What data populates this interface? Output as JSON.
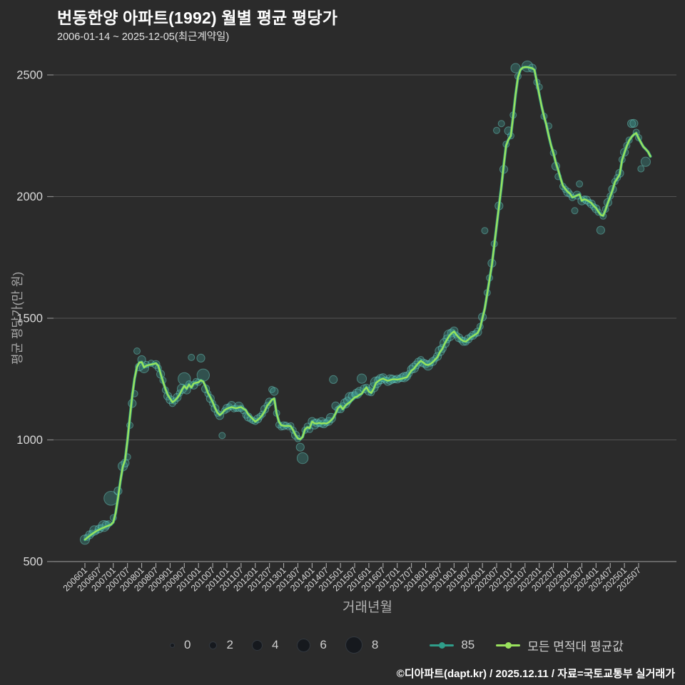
{
  "header": {
    "title": "번동한양 아파트(1992) 월별 평균 평당가",
    "subtitle": "2006-01-14 ~ 2025-12-05(최근계약일)"
  },
  "colors": {
    "background": "#2b2b2b",
    "grid": "#545454",
    "axis_line": "#8a8a8a",
    "tick_text": "#d9d9d9",
    "axis_title_text": "#a9a9a9",
    "bubble_fill": "rgba(62,168,160,0.30)",
    "bubble_stroke": "rgba(112,212,202,0.45)",
    "legend_bubble_fill": "#16191e",
    "series_85": "#2f9e8a",
    "series_avg": "#9ae25d"
  },
  "chart_data": {
    "type": "line",
    "title": "번동한양 아파트(1992) 월별 평균 평당가",
    "xlabel": "거래년월",
    "ylabel": "평균 평당가(만 원)",
    "x_start": "2006-01",
    "x_end": "2025-12",
    "ylim": [
      500,
      2500
    ],
    "yticks": [
      500,
      1000,
      1500,
      2000,
      2500
    ],
    "grid": true,
    "legend_position": "bottom",
    "x_tick_labels": [
      "200601",
      "200607",
      "200701",
      "200707",
      "200801",
      "200807",
      "200901",
      "200907",
      "201001",
      "201007",
      "201101",
      "201107",
      "201201",
      "201207",
      "201301",
      "201307",
      "201401",
      "201407",
      "201501",
      "201507",
      "201601",
      "201607",
      "201701",
      "201707",
      "201801",
      "201807",
      "201901",
      "201907",
      "202001",
      "202007",
      "202101",
      "202107",
      "202201",
      "202207",
      "202301",
      "202307",
      "202401",
      "202407",
      "202501",
      "202507"
    ],
    "line_values": [
      590,
      598,
      606,
      613,
      620,
      626,
      631,
      636,
      640,
      644,
      648,
      652,
      662,
      700,
      762,
      830,
      890,
      918,
      1000,
      1092,
      1180,
      1252,
      1300,
      1318,
      1320,
      1298,
      1305,
      1308,
      1310,
      1312,
      1315,
      1305,
      1272,
      1240,
      1210,
      1185,
      1170,
      1155,
      1162,
      1172,
      1186,
      1206,
      1222,
      1210,
      1228,
      1215,
      1232,
      1235,
      1237,
      1245,
      1240,
      1219,
      1193,
      1175,
      1155,
      1131,
      1112,
      1102,
      1110,
      1122,
      1128,
      1132,
      1135,
      1132,
      1130,
      1133,
      1135,
      1128,
      1122,
      1105,
      1095,
      1085,
      1075,
      1082,
      1091,
      1102,
      1118,
      1140,
      1152,
      1165,
      1170,
      1110,
      1075,
      1060,
      1058,
      1057,
      1058,
      1056,
      1040,
      1020,
      1006,
      1003,
      1012,
      1043,
      1052,
      1048,
      1076,
      1068,
      1067,
      1070,
      1067,
      1069,
      1067,
      1072,
      1080,
      1091,
      1110,
      1131,
      1140,
      1126,
      1140,
      1149,
      1155,
      1165,
      1175,
      1178,
      1185,
      1190,
      1205,
      1216,
      1199,
      1193,
      1210,
      1234,
      1242,
      1248,
      1252,
      1247,
      1243,
      1246,
      1249,
      1249,
      1248,
      1250,
      1252,
      1255,
      1257,
      1270,
      1285,
      1292,
      1305,
      1316,
      1325,
      1318,
      1310,
      1308,
      1312,
      1320,
      1330,
      1340,
      1360,
      1374,
      1395,
      1412,
      1428,
      1438,
      1446,
      1432,
      1421,
      1412,
      1406,
      1404,
      1412,
      1421,
      1427,
      1433,
      1440,
      1460,
      1500,
      1540,
      1600,
      1660,
      1720,
      1800,
      1880,
      1960,
      2041,
      2130,
      2210,
      2235,
      2250,
      2330,
      2420,
      2490,
      2520,
      2530,
      2532,
      2532,
      2530,
      2528,
      2520,
      2470,
      2420,
      2372,
      2330,
      2295,
      2250,
      2210,
      2178,
      2140,
      2110,
      2075,
      2045,
      2032,
      2020,
      2012,
      1997,
      2000,
      2005,
      2009,
      1983,
      1989,
      1986,
      1980,
      1974,
      1962,
      1953,
      1938,
      1925,
      1921,
      1945,
      1974,
      2000,
      2027,
      2060,
      2075,
      2091,
      2150,
      2180,
      2208,
      2230,
      2245,
      2255,
      2261,
      2240,
      2222,
      2205,
      2195,
      2184,
      2165
    ],
    "series": [
      {
        "name": "85",
        "color": "#2f9e8a"
      },
      {
        "name": "모든 면적대 평균값",
        "color": "#9ae25d"
      }
    ],
    "size_legend": [
      0,
      2,
      4,
      6,
      8
    ],
    "bubbles": [
      [
        0,
        590,
        4
      ],
      [
        1,
        600,
        2
      ],
      [
        2,
        610,
        3
      ],
      [
        3,
        616,
        2
      ],
      [
        4,
        628,
        4
      ],
      [
        5,
        624,
        1
      ],
      [
        6,
        634,
        3
      ],
      [
        7,
        640,
        2
      ],
      [
        8,
        646,
        5
      ],
      [
        9,
        650,
        3
      ],
      [
        10,
        655,
        2
      ],
      [
        11,
        760,
        7
      ],
      [
        12,
        680,
        2
      ],
      [
        14,
        790,
        3
      ],
      [
        16,
        892,
        4
      ],
      [
        17,
        905,
        3
      ],
      [
        18,
        930,
        2
      ],
      [
        19,
        1060,
        2
      ],
      [
        20,
        1150,
        3
      ],
      [
        21,
        1190,
        2
      ],
      [
        22,
        1365,
        2
      ],
      [
        23,
        1300,
        3
      ],
      [
        24,
        1330,
        3
      ],
      [
        25,
        1295,
        4
      ],
      [
        26,
        1310,
        2
      ],
      [
        28,
        1315,
        2
      ],
      [
        30,
        1310,
        3
      ],
      [
        31,
        1295,
        2
      ],
      [
        32,
        1270,
        3
      ],
      [
        33,
        1245,
        2
      ],
      [
        34,
        1205,
        2
      ],
      [
        35,
        1180,
        3
      ],
      [
        36,
        1165,
        3
      ],
      [
        37,
        1150,
        2
      ],
      [
        38,
        1160,
        2
      ],
      [
        39,
        1175,
        3
      ],
      [
        40,
        1192,
        2
      ],
      [
        41,
        1210,
        4
      ],
      [
        42,
        1251,
        6
      ],
      [
        43,
        1205,
        3
      ],
      [
        44,
        1230,
        2
      ],
      [
        45,
        1339,
        2
      ],
      [
        46,
        1225,
        3
      ],
      [
        47,
        1240,
        2
      ],
      [
        48,
        1237,
        2
      ],
      [
        49,
        1336,
        3
      ],
      [
        50,
        1266,
        6
      ],
      [
        51,
        1210,
        3
      ],
      [
        52,
        1190,
        2
      ],
      [
        53,
        1170,
        3
      ],
      [
        54,
        1150,
        2
      ],
      [
        55,
        1130,
        3
      ],
      [
        56,
        1110,
        2
      ],
      [
        57,
        1100,
        3
      ],
      [
        58,
        1018,
        2
      ],
      [
        59,
        1120,
        2
      ],
      [
        60,
        1130,
        3
      ],
      [
        61,
        1136,
        2
      ],
      [
        62,
        1142,
        3
      ],
      [
        63,
        1128,
        2
      ],
      [
        64,
        1130,
        2
      ],
      [
        65,
        1136,
        4
      ],
      [
        66,
        1130,
        2
      ],
      [
        67,
        1120,
        2
      ],
      [
        68,
        1102,
        2
      ],
      [
        69,
        1094,
        3
      ],
      [
        70,
        1086,
        2
      ],
      [
        71,
        1080,
        2
      ],
      [
        72,
        1076,
        2
      ],
      [
        73,
        1086,
        3
      ],
      [
        74,
        1096,
        2
      ],
      [
        75,
        1106,
        2
      ],
      [
        76,
        1126,
        3
      ],
      [
        77,
        1142,
        2
      ],
      [
        78,
        1156,
        3
      ],
      [
        79,
        1207,
        2
      ],
      [
        80,
        1199,
        3
      ],
      [
        81,
        1110,
        2
      ],
      [
        82,
        1062,
        2
      ],
      [
        83,
        1053,
        2
      ],
      [
        84,
        1058,
        3
      ],
      [
        85,
        1060,
        2
      ],
      [
        86,
        1054,
        2
      ],
      [
        87,
        1058,
        2
      ],
      [
        88,
        1040,
        2
      ],
      [
        89,
        1020,
        3
      ],
      [
        90,
        1005,
        2
      ],
      [
        91,
        970,
        3
      ],
      [
        92,
        925,
        5
      ],
      [
        93,
        1040,
        2
      ],
      [
        94,
        1056,
        2
      ],
      [
        95,
        1043,
        2
      ],
      [
        96,
        1076,
        3
      ],
      [
        97,
        1064,
        4
      ],
      [
        98,
        1070,
        3
      ],
      [
        99,
        1068,
        2
      ],
      [
        100,
        1072,
        4
      ],
      [
        101,
        1066,
        3
      ],
      [
        102,
        1070,
        2
      ],
      [
        103,
        1076,
        3
      ],
      [
        104,
        1090,
        4
      ],
      [
        105,
        1248,
        3
      ],
      [
        106,
        1140,
        3
      ],
      [
        107,
        1125,
        2
      ],
      [
        108,
        1128,
        3
      ],
      [
        109,
        1140,
        2
      ],
      [
        110,
        1150,
        4
      ],
      [
        111,
        1160,
        3
      ],
      [
        112,
        1176,
        4
      ],
      [
        113,
        1180,
        3
      ],
      [
        114,
        1186,
        2
      ],
      [
        115,
        1190,
        4
      ],
      [
        116,
        1200,
        3
      ],
      [
        117,
        1252,
        4
      ],
      [
        118,
        1210,
        3
      ],
      [
        119,
        1216,
        2
      ],
      [
        120,
        1200,
        3
      ],
      [
        121,
        1194,
        2
      ],
      [
        122,
        1216,
        4
      ],
      [
        123,
        1236,
        5
      ],
      [
        124,
        1244,
        3
      ],
      [
        125,
        1250,
        4
      ],
      [
        126,
        1256,
        3
      ],
      [
        127,
        1246,
        2
      ],
      [
        128,
        1240,
        3
      ],
      [
        129,
        1248,
        4
      ],
      [
        130,
        1250,
        3
      ],
      [
        131,
        1248,
        2
      ],
      [
        132,
        1250,
        3
      ],
      [
        133,
        1252,
        2
      ],
      [
        134,
        1256,
        3
      ],
      [
        135,
        1258,
        4
      ],
      [
        136,
        1262,
        3
      ],
      [
        137,
        1272,
        2
      ],
      [
        138,
        1290,
        3
      ],
      [
        139,
        1296,
        4
      ],
      [
        140,
        1308,
        3
      ],
      [
        141,
        1320,
        3
      ],
      [
        142,
        1330,
        2
      ],
      [
        143,
        1316,
        3
      ],
      [
        144,
        1312,
        3
      ],
      [
        145,
        1306,
        4
      ],
      [
        146,
        1316,
        2
      ],
      [
        147,
        1322,
        3
      ],
      [
        148,
        1333,
        2
      ],
      [
        149,
        1343,
        3
      ],
      [
        150,
        1365,
        4
      ],
      [
        151,
        1376,
        3
      ],
      [
        152,
        1398,
        4
      ],
      [
        153,
        1415,
        3
      ],
      [
        154,
        1430,
        5
      ],
      [
        155,
        1440,
        3
      ],
      [
        156,
        1448,
        3
      ],
      [
        157,
        1431,
        2
      ],
      [
        158,
        1420,
        3
      ],
      [
        159,
        1411,
        2
      ],
      [
        160,
        1405,
        3
      ],
      [
        161,
        1402,
        2
      ],
      [
        162,
        1415,
        3
      ],
      [
        163,
        1424,
        2
      ],
      [
        164,
        1430,
        3
      ],
      [
        165,
        1436,
        2
      ],
      [
        166,
        1443,
        3
      ],
      [
        167,
        1466,
        2
      ],
      [
        168,
        1505,
        3
      ],
      [
        169,
        1860,
        2
      ],
      [
        170,
        1605,
        2
      ],
      [
        171,
        1666,
        2
      ],
      [
        172,
        1726,
        3
      ],
      [
        173,
        1806,
        2
      ],
      [
        174,
        2272,
        2
      ],
      [
        175,
        1962,
        3
      ],
      [
        176,
        2300,
        2
      ],
      [
        177,
        2112,
        3
      ],
      [
        178,
        2215,
        2
      ],
      [
        179,
        2270,
        3
      ],
      [
        180,
        2250,
        2
      ],
      [
        181,
        2335,
        2
      ],
      [
        182,
        2528,
        4
      ],
      [
        183,
        2494,
        2
      ],
      [
        187,
        2535,
        5
      ],
      [
        189,
        2528,
        3
      ],
      [
        191,
        2470,
        2
      ],
      [
        192,
        2450,
        2
      ],
      [
        194,
        2330,
        2
      ],
      [
        196,
        2290,
        2
      ],
      [
        198,
        2180,
        2
      ],
      [
        199,
        2125,
        3
      ],
      [
        200,
        2082,
        2
      ],
      [
        202,
        2042,
        2
      ],
      [
        203,
        2030,
        2
      ],
      [
        204,
        2018,
        3
      ],
      [
        205,
        2010,
        2
      ],
      [
        206,
        1996,
        2
      ],
      [
        207,
        1942,
        2
      ],
      [
        208,
        2006,
        3
      ],
      [
        209,
        2052,
        2
      ],
      [
        210,
        1982,
        3
      ],
      [
        211,
        1990,
        2
      ],
      [
        212,
        1986,
        3
      ],
      [
        213,
        1976,
        2
      ],
      [
        214,
        1970,
        3
      ],
      [
        215,
        1958,
        2
      ],
      [
        216,
        1950,
        3
      ],
      [
        217,
        1936,
        2
      ],
      [
        218,
        1862,
        3
      ],
      [
        219,
        1920,
        2
      ],
      [
        220,
        1948,
        2
      ],
      [
        221,
        1976,
        3
      ],
      [
        222,
        2002,
        2
      ],
      [
        223,
        2030,
        3
      ],
      [
        224,
        2062,
        2
      ],
      [
        225,
        2078,
        2
      ],
      [
        226,
        2096,
        3
      ],
      [
        227,
        2152,
        2
      ],
      [
        228,
        2182,
        3
      ],
      [
        229,
        2210,
        2
      ],
      [
        230,
        2232,
        2
      ],
      [
        231,
        2300,
        3
      ],
      [
        232,
        2301,
        3
      ],
      [
        233,
        2264,
        2
      ],
      [
        234,
        2242,
        2
      ],
      [
        235,
        2114,
        2
      ],
      [
        237,
        2143,
        4
      ]
    ]
  },
  "footer": {
    "credit": "©디아파트(dapt.kr) / 2025.12.11 / 자료=국토교통부 실거래가"
  }
}
